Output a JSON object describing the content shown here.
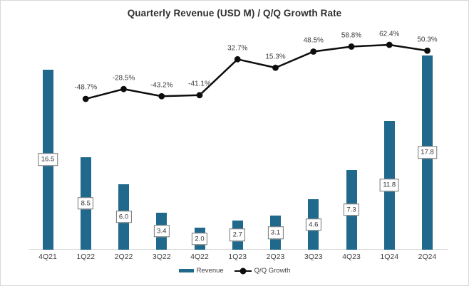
{
  "window": {
    "background": "#ffffff",
    "frame_border_color": "#d8d8d8",
    "axis_line_color": "#d9d9d9"
  },
  "chart_data": {
    "type": "combo-bar-line",
    "title": "Quarterly Revenue (USD M) / Q/Q Growth Rate",
    "categories": [
      "4Q21",
      "1Q22",
      "2Q22",
      "3Q22",
      "4Q22",
      "1Q23",
      "2Q23",
      "3Q23",
      "4Q23",
      "1Q24",
      "2Q24"
    ],
    "series": [
      {
        "name": "Revenue",
        "type": "bar",
        "color": "#20698C",
        "values": [
          16.5,
          8.5,
          6.0,
          3.4,
          2.0,
          2.7,
          3.1,
          4.6,
          7.3,
          11.8,
          17.8
        ],
        "labels": [
          "16.5",
          "8.5",
          "6.0",
          "3.4",
          "2.0",
          "2.7",
          "3.1",
          "4.6",
          "7.3",
          "11.8",
          "17.8"
        ]
      },
      {
        "name": "Q/Q Growth",
        "type": "line",
        "color": "#0d0d0d",
        "values": [
          null,
          -48.7,
          -28.5,
          -43.2,
          -41.1,
          32.7,
          15.3,
          48.5,
          58.8,
          62.4,
          50.3
        ],
        "labels": [
          null,
          "-48.7%",
          "-28.5%",
          "-43.2%",
          "-41.1%",
          "32.7%",
          "15.3%",
          "48.5%",
          "58.8%",
          "62.4%",
          "50.3%"
        ]
      }
    ],
    "legend": [
      "Revenue",
      "Q/Q Growth"
    ],
    "legend_position": "bottom",
    "grid": false,
    "bar_axis_range_hint": [
      0,
      20
    ],
    "line_axis_range_hint_pct": [
      -60,
      75
    ]
  }
}
